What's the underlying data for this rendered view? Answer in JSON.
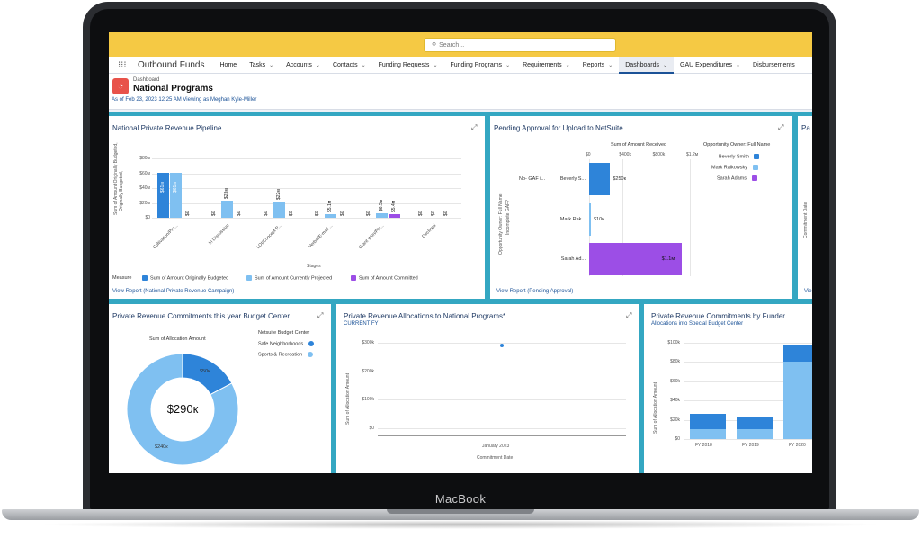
{
  "device": {
    "brand": "MacBook"
  },
  "topbar": {
    "search_placeholder": "Search..."
  },
  "nav": {
    "app_name": "Outbound Funds",
    "items": [
      {
        "label": "Home",
        "dropdown": false,
        "active": false
      },
      {
        "label": "Tasks",
        "dropdown": true,
        "active": false
      },
      {
        "label": "Accounts",
        "dropdown": true,
        "active": false
      },
      {
        "label": "Contacts",
        "dropdown": true,
        "active": false
      },
      {
        "label": "Funding Requests",
        "dropdown": true,
        "active": false
      },
      {
        "label": "Funding Programs",
        "dropdown": true,
        "active": false
      },
      {
        "label": "Requirements",
        "dropdown": true,
        "active": false
      },
      {
        "label": "Reports",
        "dropdown": true,
        "active": false
      },
      {
        "label": "Dashboards",
        "dropdown": true,
        "active": true
      },
      {
        "label": "GAU Expenditures",
        "dropdown": true,
        "active": false
      },
      {
        "label": "Disbursements",
        "dropdown": false,
        "active": false
      }
    ]
  },
  "header": {
    "label": "Dashboard",
    "title": "National Programs",
    "subtitle": "As of Feb 23, 2023 12:25 AM Viewing as Meghan Kyle-Miller"
  },
  "colors": {
    "blue_dark": "#2e84d9",
    "blue_light": "#7fc0f1",
    "purple": "#9c4ee6",
    "frame_teal": "#34a7c2",
    "topbar": "#f5c944"
  },
  "panels": {
    "pipeline": {
      "title": "National Private Revenue Pipeline",
      "link": "View Report (National Private Revenue Campaign)",
      "ylabel": "Sum of Amount Originally Budgeted,",
      "xlabel": "Stages",
      "yticks": [
        "$80м",
        "$60м",
        "$40м",
        "$20м",
        "$0"
      ],
      "legend_title": "Measure",
      "legend": [
        "Sum of Amount Originally Budgeted",
        "Sum of Amount Currently Projected",
        "Sum of Amount Committed"
      ]
    },
    "pending": {
      "title": "Pending Approval for Upload to NetSuite",
      "link": "View Report (Pending Approval)",
      "axis_title": "Sum of Amount Received",
      "xticks": [
        "$0",
        "$400k",
        "$800k",
        "$1.2м"
      ],
      "ylabel": "Opportunity Owner: Full Name",
      "ylabel2": "Incomplete GAF?",
      "legend_title": "Opportunity Owner: Full Name",
      "legend": [
        "Beverly Smith",
        "Mark Raikowsky",
        "Sarah Adams"
      ],
      "group_label": "No- GAF i...",
      "rows": [
        "Beverly S...",
        "Mark Rak...",
        "Sarah Ad..."
      ]
    },
    "partial": {
      "title": "Pa",
      "ylabel": "Commitment Date",
      "link": "Vie"
    },
    "budget": {
      "title": "Private Revenue Commitments this year Budget Center",
      "chart_title": "Sum of Allocation Amount",
      "center": "$290к",
      "legend_title": "Netsuite Budget Center",
      "legend": [
        "Safe Neighborhoods",
        "Sports & Recreation"
      ]
    },
    "allocations": {
      "title": "Private Revenue Allocations to National Programs*",
      "subtitle": "CURRENT FY",
      "ylabel": "Sum of Allocation Amount",
      "yticks": [
        "$300k",
        "$200k",
        "$100k",
        "$0"
      ],
      "xtick": "January 2023",
      "xlabel": "Commitment Date"
    },
    "funder": {
      "title": "Private Revenue Commitments by Funder",
      "subtitle": "Allocations into Special Budget Center",
      "ylabel": "Sum of Allocation Amount",
      "yticks": [
        "$100k",
        "$80k",
        "$60k",
        "$40k",
        "$20k",
        "$0"
      ],
      "categories": [
        "FY 2018",
        "FY 2019",
        "FY 2020"
      ]
    }
  },
  "chart_data": [
    {
      "type": "bar",
      "title": "National Private Revenue Pipeline",
      "xlabel": "Stages",
      "ylabel": "Sum of Amount Originally Budgeted,",
      "ylim": [
        0,
        80
      ],
      "categories": [
        "Cultivation/Pro...",
        "In Discussion",
        "LOI/Concept P...",
        "Verbal/E-mail ...",
        "Grant Won/Ple...",
        "Declined"
      ],
      "series": [
        {
          "name": "Sum of Amount Originally Budgeted",
          "values": [
            61,
            0,
            0,
            0,
            0,
            0
          ],
          "labels": [
            "$61м",
            "$0",
            "$0",
            "$0",
            "$0",
            "$0"
          ]
        },
        {
          "name": "Sum of Amount Currently Projected",
          "values": [
            61,
            23,
            22,
            5.1,
            6.5,
            0
          ],
          "labels": [
            "$61м",
            "$23м",
            "$22м",
            "$5.1м",
            "$6.5м",
            "$0"
          ]
        },
        {
          "name": "Sum of Amount Committed",
          "values": [
            0,
            0,
            0,
            0,
            5.4,
            0
          ],
          "labels": [
            "$0",
            "$0",
            "$0",
            "$0",
            "$5.4м",
            "$0"
          ]
        }
      ]
    },
    {
      "type": "bar",
      "title": "Pending Approval for Upload to NetSuite",
      "orientation": "horizontal",
      "xlabel": "Sum of Amount Received",
      "xlim": [
        0,
        1200000
      ],
      "categories": [
        "Beverly S...",
        "Mark Rak...",
        "Sarah Ad..."
      ],
      "values": [
        250000,
        10000,
        1100000
      ],
      "labels": [
        "$250к",
        "$10к",
        "$1.1м"
      ],
      "colors": [
        "#2e84d9",
        "#7fc0f1",
        "#9c4ee6"
      ]
    },
    {
      "type": "pie",
      "title": "Sum of Allocation Amount",
      "donut": true,
      "total_label": "$290к",
      "categories": [
        "Safe Neighborhoods",
        "Sports & Recreation"
      ],
      "values": [
        50000,
        240000
      ],
      "labels": [
        "$50к",
        "$240к"
      ]
    },
    {
      "type": "scatter",
      "title": "Private Revenue Allocations to National Programs*",
      "xlabel": "Commitment Date",
      "ylabel": "Sum of Allocation Amount",
      "ylim": [
        0,
        300000
      ],
      "x": [
        "January 2023"
      ],
      "y": [
        290000
      ]
    },
    {
      "type": "bar",
      "stacked": true,
      "title": "Private Revenue Commitments by Funder",
      "ylabel": "Sum of Allocation Amount",
      "ylim": [
        0,
        100000
      ],
      "categories": [
        "FY 2018",
        "FY 2019",
        "FY 2020"
      ],
      "series": [
        {
          "values": [
            10000,
            10000,
            80000
          ]
        },
        {
          "values": [
            16000,
            12000,
            17000
          ]
        }
      ]
    }
  ]
}
